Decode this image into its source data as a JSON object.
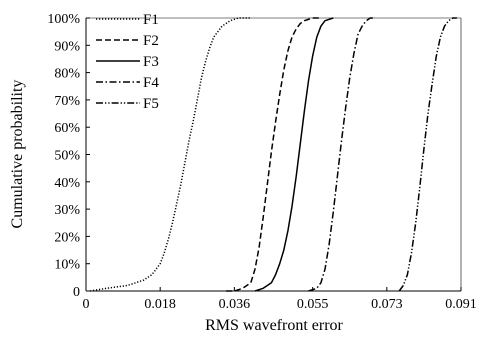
{
  "chart_data": {
    "type": "line",
    "xlabel": "RMS wavefront error",
    "ylabel": "Cumulative probability",
    "xlim": [
      0,
      0.091
    ],
    "ylim": [
      0,
      100
    ],
    "x_ticks": [
      {
        "value": 0,
        "label": "0"
      },
      {
        "value": 0.018,
        "label": "0.018"
      },
      {
        "value": 0.036,
        "label": "0.036"
      },
      {
        "value": 0.055,
        "label": "0.055"
      },
      {
        "value": 0.073,
        "label": "0.073"
      },
      {
        "value": 0.091,
        "label": "0.091"
      }
    ],
    "y_ticks": [
      {
        "value": 0,
        "label": "0"
      },
      {
        "value": 10,
        "label": "10%"
      },
      {
        "value": 20,
        "label": "20%"
      },
      {
        "value": 30,
        "label": "30%"
      },
      {
        "value": 40,
        "label": "40%"
      },
      {
        "value": 50,
        "label": "50%"
      },
      {
        "value": 60,
        "label": "60%"
      },
      {
        "value": 70,
        "label": "70%"
      },
      {
        "value": 80,
        "label": "80%"
      },
      {
        "value": 90,
        "label": "90%"
      },
      {
        "value": 100,
        "label": "100%"
      }
    ],
    "grid": false,
    "legend_position": "top-left",
    "series": [
      {
        "name": "F1",
        "dash": "1.2,1.8",
        "x": [
          0.001,
          0.005,
          0.01,
          0.014,
          0.016,
          0.017,
          0.018,
          0.019,
          0.02,
          0.021,
          0.022,
          0.023,
          0.024,
          0.025,
          0.026,
          0.0265,
          0.027,
          0.028,
          0.029,
          0.03,
          0.031,
          0.033,
          0.035,
          0.037,
          0.04
        ],
        "y": [
          0,
          1,
          2,
          4,
          6,
          8,
          10,
          14,
          19,
          25,
          32,
          39,
          47,
          55,
          62,
          66,
          70,
          78,
          84,
          89,
          93,
          97,
          99,
          100,
          100
        ]
      },
      {
        "name": "F2",
        "dash": "6,3",
        "x": [
          0.034,
          0.036,
          0.038,
          0.04,
          0.041,
          0.042,
          0.043,
          0.044,
          0.045,
          0.046,
          0.047,
          0.048,
          0.049,
          0.05,
          0.051,
          0.052,
          0.053,
          0.055,
          0.057
        ],
        "y": [
          0,
          0,
          1,
          3,
          8,
          16,
          27,
          39,
          51,
          62,
          72,
          81,
          88,
          93,
          96,
          98,
          99,
          100,
          100
        ]
      },
      {
        "name": "F3",
        "dash": "",
        "x": [
          0.041,
          0.043,
          0.045,
          0.046,
          0.047,
          0.048,
          0.049,
          0.05,
          0.051,
          0.052,
          0.053,
          0.054,
          0.055,
          0.056,
          0.057,
          0.058,
          0.06
        ],
        "y": [
          0,
          1,
          3,
          6,
          10,
          15,
          22,
          31,
          42,
          54,
          66,
          77,
          86,
          93,
          97,
          99,
          100
        ]
      },
      {
        "name": "F4",
        "dash": "7,2.5,1.5,2.5",
        "x": [
          0.054,
          0.056,
          0.057,
          0.058,
          0.059,
          0.06,
          0.061,
          0.062,
          0.063,
          0.064,
          0.065,
          0.066,
          0.067,
          0.068,
          0.069,
          0.07
        ],
        "y": [
          0,
          1,
          3,
          8,
          17,
          29,
          42,
          55,
          67,
          78,
          87,
          94,
          97,
          99,
          100,
          100
        ]
      },
      {
        "name": "F5",
        "dash": "7,2,1.3,2,1.3,2",
        "x": [
          0.076,
          0.077,
          0.078,
          0.079,
          0.08,
          0.081,
          0.082,
          0.083,
          0.084,
          0.085,
          0.086,
          0.087,
          0.088,
          0.089,
          0.09
        ],
        "y": [
          0,
          2,
          6,
          14,
          25,
          38,
          52,
          65,
          76,
          86,
          93,
          97,
          99,
          100,
          100
        ]
      }
    ]
  }
}
